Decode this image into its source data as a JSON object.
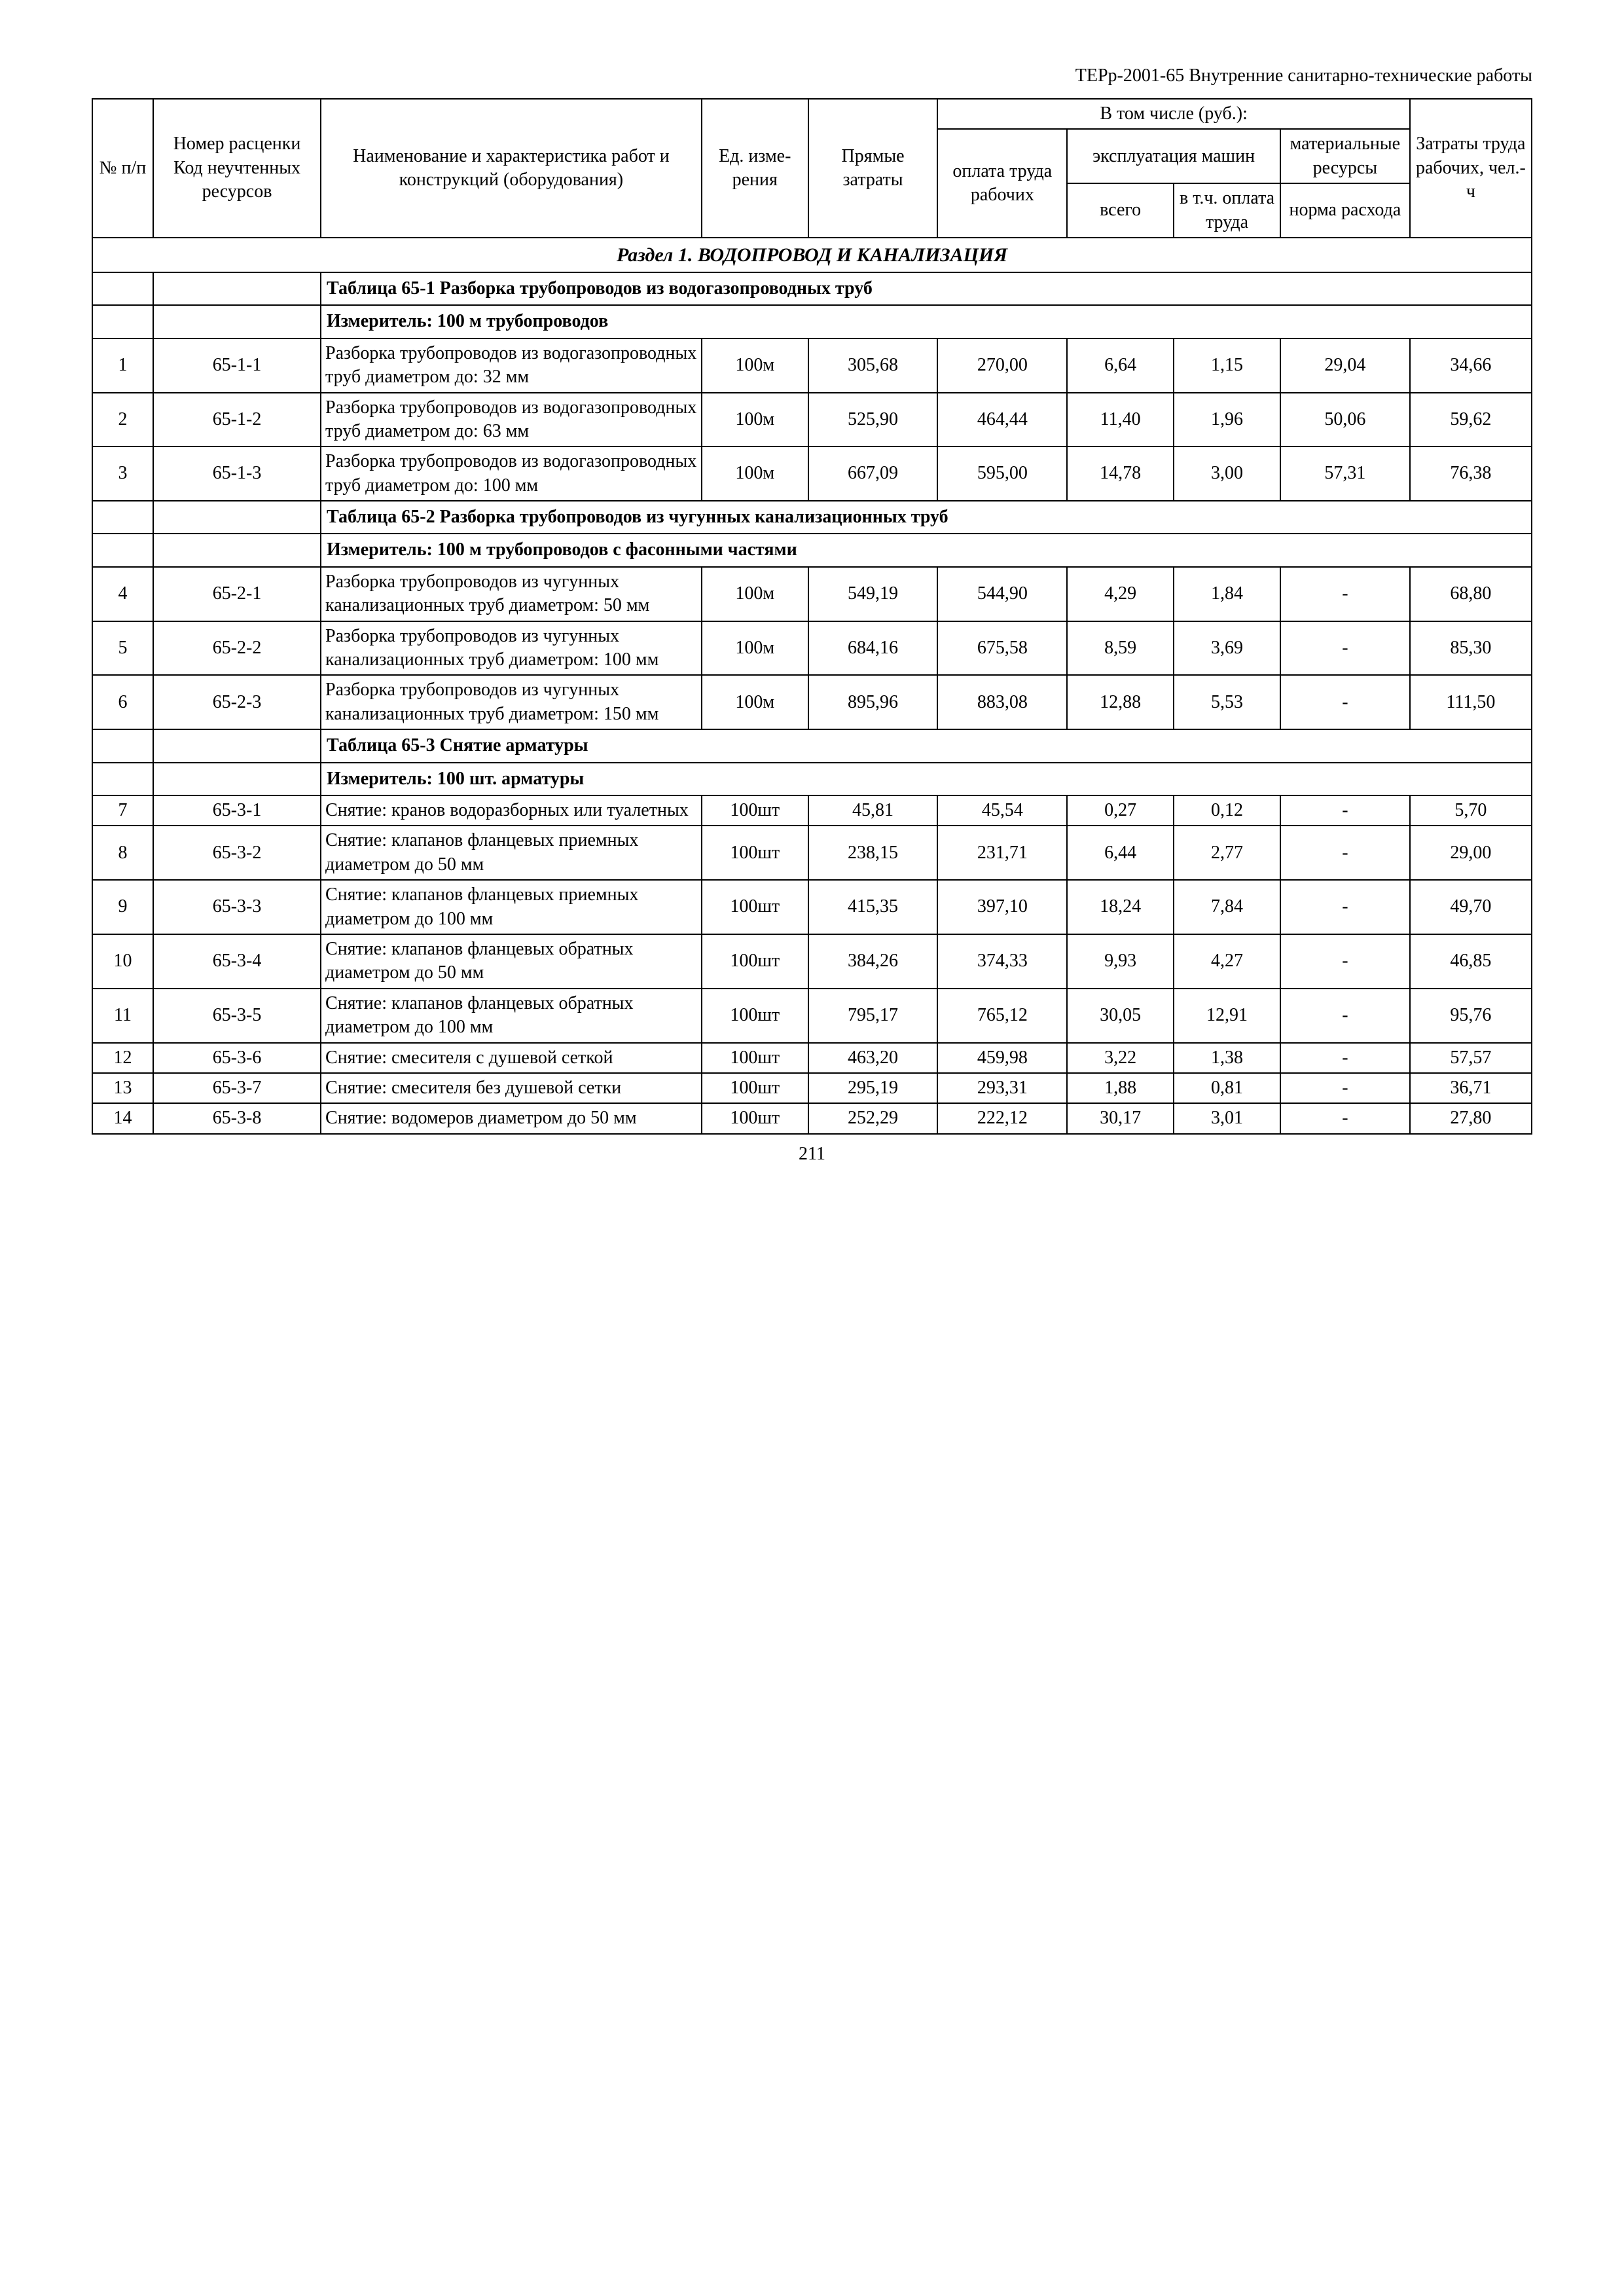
{
  "doc_header": "ТЕРр-2001-65 Внутренние санитарно-технические работы",
  "page_number": "211",
  "header": {
    "col_num": "№ п/п",
    "col_code": "Номер расценки Код неучтенных ресурсов",
    "col_name": "Наименование и характеристика работ и конструкций (оборудования)",
    "col_unit": "Ед. изме­рения",
    "col_direct_cost": "Прямые затраты",
    "group_in_that": "В том числе (руб.):",
    "col_labor_pay": "оплата труда рабочих",
    "group_machines": "эксплуатация машин",
    "col_mach_total": "всего",
    "col_mach_inc": "в т.ч. оплата труда",
    "col_materials": "матери­альные ресурсы норма расхода",
    "col_materials_top": "матери­альные ресурсы",
    "col_materials_bot": "норма расхода",
    "col_labor_hours": "Затра­ты труда рабо­чих, чел.-ч"
  },
  "section1_title": "Раздел 1. ВОДОПРОВОД И КАНАЛИЗАЦИЯ",
  "tables": [
    {
      "title": "Таблица 65-1 Разборка трубопроводов из водогазопроводных труб",
      "measure": "Измеритель: 100 м трубопроводов",
      "rows": [
        {
          "n": "1",
          "code": "65-1-1",
          "name": "Разборка трубопроводов из водогазопроводных труб диаметром до: 32 мм",
          "unit": "100м",
          "direct": "305,68",
          "labor": "270,00",
          "mach_total": "6,64",
          "mach_inc": "1,15",
          "materials": "29,04",
          "hours": "34,66"
        },
        {
          "n": "2",
          "code": "65-1-2",
          "name": "Разборка трубопроводов из водогазопроводных труб диаметром до: 63 мм",
          "unit": "100м",
          "direct": "525,90",
          "labor": "464,44",
          "mach_total": "11,40",
          "mach_inc": "1,96",
          "materials": "50,06",
          "hours": "59,62"
        },
        {
          "n": "3",
          "code": "65-1-3",
          "name": "Разборка трубопроводов из водогазопроводных труб диаметром до: 100 мм",
          "unit": "100м",
          "direct": "667,09",
          "labor": "595,00",
          "mach_total": "14,78",
          "mach_inc": "3,00",
          "materials": "57,31",
          "hours": "76,38"
        }
      ]
    },
    {
      "title": "Таблица 65-2 Разборка трубопроводов из чугунных канализационных труб",
      "measure": "Измеритель: 100 м трубопроводов с фасонными частями",
      "rows": [
        {
          "n": "4",
          "code": "65-2-1",
          "name": "Разборка трубопроводов из чугунных канализационных труб диаметром: 50 мм",
          "unit": "100м",
          "direct": "549,19",
          "labor": "544,90",
          "mach_total": "4,29",
          "mach_inc": "1,84",
          "materials": "-",
          "hours": "68,80"
        },
        {
          "n": "5",
          "code": "65-2-2",
          "name": "Разборка трубопроводов из чугунных канализационных труб диаметром: 100 мм",
          "unit": "100м",
          "direct": "684,16",
          "labor": "675,58",
          "mach_total": "8,59",
          "mach_inc": "3,69",
          "materials": "-",
          "hours": "85,30"
        },
        {
          "n": "6",
          "code": "65-2-3",
          "name": "Разборка трубопроводов из чугунных канализационных труб диаметром: 150 мм",
          "unit": "100м",
          "direct": "895,96",
          "labor": "883,08",
          "mach_total": "12,88",
          "mach_inc": "5,53",
          "materials": "-",
          "hours": "111,50"
        }
      ]
    },
    {
      "title": "Таблица 65-3 Снятие арматуры",
      "measure": "Измеритель: 100 шт. арматуры",
      "rows": [
        {
          "n": "7",
          "code": "65-3-1",
          "name": "Снятие: кранов водоразборных или туалетных",
          "unit": "100шт",
          "direct": "45,81",
          "labor": "45,54",
          "mach_total": "0,27",
          "mach_inc": "0,12",
          "materials": "-",
          "hours": "5,70"
        },
        {
          "n": "8",
          "code": "65-3-2",
          "name": "Снятие: клапанов фланцевых приемных диаметром до 50 мм",
          "unit": "100шт",
          "direct": "238,15",
          "labor": "231,71",
          "mach_total": "6,44",
          "mach_inc": "2,77",
          "materials": "-",
          "hours": "29,00"
        },
        {
          "n": "9",
          "code": "65-3-3",
          "name": "Снятие: клапанов фланцевых приемных диаметром до 100 мм",
          "unit": "100шт",
          "direct": "415,35",
          "labor": "397,10",
          "mach_total": "18,24",
          "mach_inc": "7,84",
          "materials": "-",
          "hours": "49,70"
        },
        {
          "n": "10",
          "code": "65-3-4",
          "name": "Снятие: клапанов фланцевых обратных диаметром до 50 мм",
          "unit": "100шт",
          "direct": "384,26",
          "labor": "374,33",
          "mach_total": "9,93",
          "mach_inc": "4,27",
          "materials": "-",
          "hours": "46,85"
        },
        {
          "n": "11",
          "code": "65-3-5",
          "name": "Снятие: клапанов фланцевых обратных диаметром до 100 мм",
          "unit": "100шт",
          "direct": "795,17",
          "labor": "765,12",
          "mach_total": "30,05",
          "mach_inc": "12,91",
          "materials": "-",
          "hours": "95,76"
        },
        {
          "n": "12",
          "code": "65-3-6",
          "name": "Снятие: смесителя с душевой сеткой",
          "unit": "100шт",
          "direct": "463,20",
          "labor": "459,98",
          "mach_total": "3,22",
          "mach_inc": "1,38",
          "materials": "-",
          "hours": "57,57"
        },
        {
          "n": "13",
          "code": "65-3-7",
          "name": "Снятие: смесителя без душевой сетки",
          "unit": "100шт",
          "direct": "295,19",
          "labor": "293,31",
          "mach_total": "1,88",
          "mach_inc": "0,81",
          "materials": "-",
          "hours": "36,71"
        },
        {
          "n": "14",
          "code": "65-3-8",
          "name": "Снятие: водомеров диаметром до 50 мм",
          "unit": "100шт",
          "direct": "252,29",
          "labor": "222,12",
          "mach_total": "30,17",
          "mach_inc": "3,01",
          "materials": "-",
          "hours": "27,80"
        }
      ]
    }
  ]
}
